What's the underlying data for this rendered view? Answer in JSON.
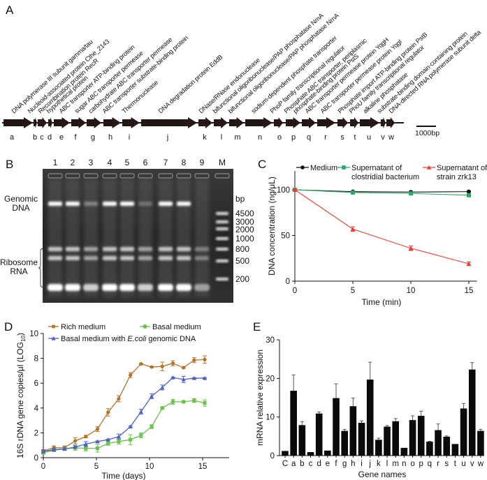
{
  "panel_letters": {
    "a": "A",
    "b": "B",
    "c": "C",
    "d": "D",
    "e": "E"
  },
  "panel_a": {
    "genes": [
      {
        "letter": "a",
        "name": "DNA polymerase III subunit gamma/tau"
      },
      {
        "letter": "b",
        "name": "Nucleoid-associated protein Cthe_2143"
      },
      {
        "letter": "c",
        "name": "Recombination protein RecR"
      },
      {
        "letter": "d",
        "name": "hypothetical protein"
      },
      {
        "letter": "e",
        "name": "ABC transporter ATP-binding protein"
      },
      {
        "letter": "f",
        "name": "sugar ABC transporter permease"
      },
      {
        "letter": "g",
        "name": "carbohydrate ABC transporter permease"
      },
      {
        "letter": "h",
        "name": "ABC transporter substrate-binding protein"
      },
      {
        "letter": "i",
        "name": "Thermonuclease"
      },
      {
        "letter": "j",
        "name": "DNA degradation protein EddB"
      },
      {
        "letter": "k",
        "name": "DNase/RNase endonuclease"
      },
      {
        "letter": "l",
        "name": "bifunctional oligoribonuclease/PAP phosphatase NrnA"
      },
      {
        "letter": "m",
        "name": "bifunctional oligoribonuclease/PAP phosphatase NrnA"
      },
      {
        "letter": "n",
        "name": "sodium-dependent phosphate transporter"
      },
      {
        "letter": "o",
        "name": "PhoP family transcriptional regulator"
      },
      {
        "letter": "p",
        "name": "Phosphate ABC transporter, periplasmic",
        "name2": "phosphate-binding protein PstS"
      },
      {
        "letter": "q",
        "name": "ABC transporter permease protein YqgH"
      },
      {
        "letter": "r",
        "name": "ABC transporter permease protein YqgI"
      },
      {
        "letter": "s",
        "name": "Phosphate import ATP-binding protein PstB"
      },
      {
        "letter": "t",
        "name": "PhoU family transcriptional regulator"
      },
      {
        "letter": "u",
        "name": "alkaline phosphatase"
      },
      {
        "letter": "v",
        "name": "substrate-binding domain-containing protein"
      },
      {
        "letter": "w",
        "name": "DNA-directed RNA polymerase subunit delta"
      }
    ],
    "scale_bar": "1000bp"
  },
  "panel_b": {
    "lanes": [
      "1",
      "2",
      "3",
      "4",
      "5",
      "6",
      "7",
      "8",
      "9",
      "M"
    ],
    "genomic_label": [
      "Genomic",
      "DNA"
    ],
    "ribosome_label": [
      "Ribosome",
      "RNA"
    ],
    "bp_label": "bp",
    "marker_sizes": [
      "4500",
      "3000",
      "2000",
      "1000",
      "800",
      "500",
      "200"
    ],
    "genomic_band_intensity": [
      1,
      1,
      0.35,
      1,
      1,
      0.25,
      1,
      1,
      0
    ]
  },
  "chart_data": [
    {
      "panel": "C",
      "type": "line",
      "xlabel": "Time (min)",
      "ylabel": "DNA concentration (ng/μL)",
      "x": [
        0,
        5,
        10,
        15
      ],
      "xlim": [
        0,
        15.7
      ],
      "ylim": [
        0,
        120
      ],
      "xticks": [
        0,
        5,
        10,
        15
      ],
      "yticks": [
        0,
        50,
        100
      ],
      "legend_position": "top",
      "series": [
        {
          "name": "Medium",
          "color": "#111111",
          "marker": "circle",
          "values": [
            100,
            98,
            97.5,
            98
          ],
          "errors": [
            0.5,
            0.8,
            0.8,
            0.6
          ]
        },
        {
          "name": "Supernatant of clostridial bacterium",
          "legend_lines": [
            "Supernatant of",
            "clostridial bacterium"
          ],
          "color": "#2aa86a",
          "marker": "square",
          "values": [
            100,
            97,
            96,
            94
          ],
          "errors": [
            0.5,
            1,
            1,
            1
          ]
        },
        {
          "name": "Supernatant of strain zrk13",
          "legend_lines": [
            "Supernatant of",
            "strain zrk13"
          ],
          "color": "#e8403a",
          "marker": "triangle",
          "values": [
            100,
            57,
            36,
            19
          ],
          "errors": [
            0.5,
            2.5,
            2.5,
            2
          ]
        }
      ]
    },
    {
      "panel": "D",
      "type": "line",
      "xlabel": "Time (days)",
      "ylabel": "16S rDNA gene copies/μl (LOG",
      "ylabel_sub": "10",
      "ylabel_end": ")",
      "x": [
        0,
        1,
        2,
        3,
        4,
        5.1,
        6.1,
        7.1,
        8.2,
        9.2,
        10.2,
        11.2,
        12.2,
        13.2,
        14.2,
        15.2
      ],
      "xlim": [
        0,
        17.5
      ],
      "ylim": [
        0,
        10
      ],
      "xticks": [
        0,
        5,
        10,
        15
      ],
      "yticks": [
        0,
        2,
        4,
        6,
        8,
        10
      ],
      "legend_position": "top-left",
      "series": [
        {
          "name": "Rich medium",
          "color": "#b5732a",
          "marker": "circle",
          "values": [
            0.55,
            0.8,
            0.8,
            1.35,
            1.7,
            2.3,
            3.65,
            4.75,
            6.65,
            7.55,
            7.3,
            7.35,
            7.6,
            7.25,
            7.85,
            7.9
          ],
          "errors": [
            0.1,
            0.15,
            0.15,
            0.25,
            0.1,
            0.2,
            0.3,
            0.25,
            0.2,
            0.05,
            0.05,
            0.35,
            0.2,
            0.05,
            0.2,
            0.3
          ]
        },
        {
          "name": "Basal medium",
          "color": "#6cc24a",
          "marker": "square",
          "values": [
            0.4,
            0.6,
            0.7,
            0.8,
            0.75,
            0.75,
            1.15,
            1.3,
            1.45,
            1.8,
            2.5,
            4.0,
            4.5,
            4.5,
            4.6,
            4.4
          ],
          "errors": [
            0.1,
            0.1,
            0.1,
            0.2,
            0.2,
            0.3,
            0.15,
            0.2,
            0.4,
            0.2,
            0.15,
            0.1,
            0.2,
            0.05,
            0.15,
            0.25
          ]
        },
        {
          "name": "Basal medium with E.coli genomic DNA",
          "legend_parts": [
            "Basal medium with ",
            "E.coli",
            " genomic DNA"
          ],
          "color": "#5060c0",
          "marker": "triangle",
          "values": [
            0.5,
            0.65,
            0.7,
            0.85,
            1.1,
            1.3,
            1.45,
            1.7,
            2.5,
            3.7,
            4.95,
            5.65,
            6.45,
            6.3,
            6.4,
            6.4
          ],
          "errors": [
            0.1,
            0.1,
            0.1,
            0.1,
            0.2,
            0.05,
            0.05,
            0.2,
            0.05,
            0.2,
            0.2,
            0.2,
            0.05,
            0.25,
            0.05,
            0.05
          ]
        }
      ]
    },
    {
      "panel": "E",
      "type": "bar",
      "xlabel": "Gene names",
      "ylabel": "mRNA relative expression",
      "categories": [
        "C",
        "a",
        "b",
        "c",
        "d",
        "e",
        "f",
        "g",
        "h",
        "i",
        "j",
        "k",
        "l",
        "m",
        "n",
        "o",
        "p",
        "q",
        "r",
        "s",
        "t",
        "u",
        "v",
        "w"
      ],
      "values": [
        1.2,
        16.8,
        7.9,
        0.9,
        10.9,
        1.3,
        14.9,
        6.4,
        12.8,
        8.5,
        19.7,
        4.1,
        7.5,
        8.9,
        2.0,
        9.2,
        10.3,
        3.6,
        6.6,
        4.9,
        3.0,
        12.2,
        22.3,
        6.4
      ],
      "errors": [
        0,
        4.1,
        0.9,
        0,
        0.4,
        0,
        3.7,
        0.4,
        2.1,
        0.5,
        4.5,
        0.4,
        0.3,
        0.7,
        0,
        1.1,
        1.2,
        0.1,
        1.6,
        0.2,
        0,
        1.3,
        1.8,
        0.4
      ],
      "ylim": [
        0,
        30
      ],
      "yticks": [
        0,
        10,
        20,
        30
      ]
    }
  ]
}
